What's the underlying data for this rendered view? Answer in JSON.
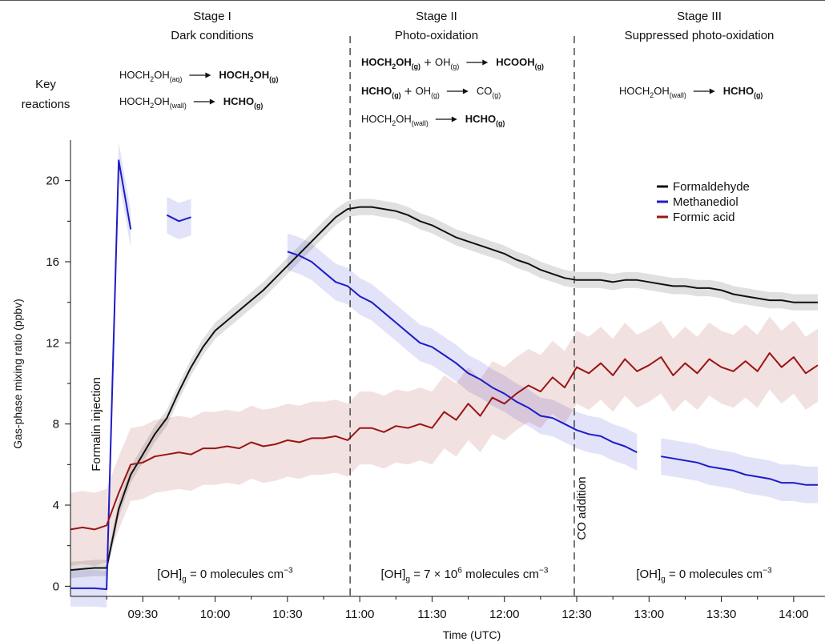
{
  "chart_data": {
    "type": "line",
    "ylabel": "Gas-phase mixing ratio (ppbv)",
    "xlabel": "Time (UTC)",
    "key_label": [
      "Key",
      "reactions"
    ],
    "xlim": [
      "09:00",
      "14:13"
    ],
    "xticks": [
      "09:30",
      "10:00",
      "10:30",
      "11:00",
      "11:30",
      "12:00",
      "12:30",
      "13:00",
      "13:30",
      "14:00"
    ],
    "xticks_minor": [
      "09:15",
      "09:45",
      "10:15",
      "10:45",
      "11:15",
      "11:45",
      "12:15",
      "12:45",
      "13:15",
      "13:45"
    ],
    "ylim": [
      -0.5,
      22
    ],
    "yticks": [
      0,
      4,
      8,
      12,
      16,
      20
    ],
    "yticks_minor": [
      2,
      6,
      10,
      14,
      18
    ],
    "grid": false,
    "legend": "upper right",
    "stage_boundaries": [
      "10:56",
      "12:29"
    ],
    "annotations": [
      {
        "text": "Formalin injection",
        "x": "09:13",
        "color": "#f5a040"
      },
      {
        "text": "CO addition",
        "x": "12:33",
        "color": "#f5a040"
      }
    ],
    "stages": [
      {
        "name": "Stage I",
        "description": "Dark conditions",
        "reactions": [
          {
            "reactants": [
              {
                "parts": [
                  "HOCH",
                  {
                    "text": "2",
                    "pos": "sub"
                  },
                  "OH",
                  {
                    "text": "(aq)",
                    "pos": "sub"
                  }
                ],
                "bold": false,
                "color": "#111111"
              }
            ],
            "products": [
              {
                "parts": [
                  "HOCH",
                  {
                    "text": "2",
                    "pos": "sub"
                  },
                  "OH",
                  {
                    "text": "(g)",
                    "pos": "sub"
                  }
                ],
                "bold": true,
                "color": "#1c1cc8"
              }
            ]
          },
          {
            "reactants": [
              {
                "parts": [
                  "HOCH",
                  {
                    "text": "2",
                    "pos": "sub"
                  },
                  "OH",
                  {
                    "text": "(wall)",
                    "pos": "sub"
                  }
                ],
                "bold": false,
                "color": "#111111"
              }
            ],
            "products": [
              {
                "parts": [
                  "HCHO",
                  {
                    "text": "(g)",
                    "pos": "sub"
                  }
                ],
                "bold": true,
                "color": "#111111"
              }
            ]
          }
        ],
        "oh": [
          "[OH]",
          {
            "text": "g",
            "pos": "sub"
          },
          " = 0 molecules cm",
          {
            "text": "−3",
            "pos": "sup"
          }
        ]
      },
      {
        "name": "Stage II",
        "description": "Photo-oxidation",
        "reactions": [
          {
            "reactants": [
              {
                "parts": [
                  "HOCH",
                  {
                    "text": "2",
                    "pos": "sub"
                  },
                  "OH",
                  {
                    "text": "(g)",
                    "pos": "sub"
                  }
                ],
                "bold": true,
                "color": "#1c1cc8"
              },
              {
                "parts": [
                  "OH",
                  {
                    "text": "(g)",
                    "pos": "sub"
                  }
                ],
                "bold": false,
                "color": "#111111"
              }
            ],
            "products": [
              {
                "parts": [
                  "HCOOH",
                  {
                    "text": "(g)",
                    "pos": "sub"
                  }
                ],
                "bold": true,
                "color": "#9b1414"
              }
            ]
          },
          {
            "reactants": [
              {
                "parts": [
                  "HCHO",
                  {
                    "text": "(g)",
                    "pos": "sub"
                  }
                ],
                "bold": true,
                "color": "#111111"
              },
              {
                "parts": [
                  "OH",
                  {
                    "text": "(g)",
                    "pos": "sub"
                  }
                ],
                "bold": false,
                "color": "#111111"
              }
            ],
            "products": [
              {
                "parts": [
                  "CO",
                  {
                    "text": "(g)",
                    "pos": "sub"
                  }
                ],
                "bold": false,
                "color": "#111111"
              }
            ]
          },
          {
            "reactants": [
              {
                "parts": [
                  "HOCH",
                  {
                    "text": "2",
                    "pos": "sub"
                  },
                  "OH",
                  {
                    "text": "(wall)",
                    "pos": "sub"
                  }
                ],
                "bold": false,
                "color": "#111111"
              }
            ],
            "products": [
              {
                "parts": [
                  "HCHO",
                  {
                    "text": "(g)",
                    "pos": "sub"
                  }
                ],
                "bold": true,
                "color": "#111111"
              }
            ]
          }
        ],
        "oh": [
          "[OH]",
          {
            "text": "g",
            "pos": "sub"
          },
          " = 7 × 10",
          {
            "text": "6",
            "pos": "sup"
          },
          " molecules cm",
          {
            "text": "−3",
            "pos": "sup"
          }
        ]
      },
      {
        "name": "Stage III",
        "description": "Suppressed photo-oxidation",
        "reactions": [
          {
            "reactants": [
              {
                "parts": [
                  "HOCH",
                  {
                    "text": "2",
                    "pos": "sub"
                  },
                  "OH",
                  {
                    "text": "(wall)",
                    "pos": "sub"
                  }
                ],
                "bold": false,
                "color": "#111111"
              }
            ],
            "products": [
              {
                "parts": [
                  "HCHO",
                  {
                    "text": "(g)",
                    "pos": "sub"
                  }
                ],
                "bold": true,
                "color": "#111111"
              }
            ]
          }
        ],
        "oh": [
          "[OH]",
          {
            "text": "g",
            "pos": "sub"
          },
          " = 0 molecules cm",
          {
            "text": "−3",
            "pos": "sup"
          }
        ]
      }
    ],
    "x": [
      "09:00",
      "09:05",
      "09:10",
      "09:15",
      "09:20",
      "09:25",
      "09:30",
      "09:35",
      "09:40",
      "09:45",
      "09:50",
      "09:55",
      "10:00",
      "10:05",
      "10:10",
      "10:15",
      "10:20",
      "10:25",
      "10:30",
      "10:35",
      "10:40",
      "10:45",
      "10:50",
      "10:55",
      "11:00",
      "11:05",
      "11:10",
      "11:15",
      "11:20",
      "11:25",
      "11:30",
      "11:35",
      "11:40",
      "11:45",
      "11:50",
      "11:55",
      "12:00",
      "12:05",
      "12:10",
      "12:15",
      "12:20",
      "12:25",
      "12:30",
      "12:35",
      "12:40",
      "12:45",
      "12:50",
      "12:55",
      "13:00",
      "13:05",
      "13:10",
      "13:15",
      "13:20",
      "13:25",
      "13:30",
      "13:35",
      "13:40",
      "13:45",
      "13:50",
      "13:55",
      "14:00",
      "14:05",
      "14:10"
    ],
    "series": [
      {
        "name": "Formaldehyde",
        "color": "#111111",
        "error": 0.4,
        "values": [
          0.8,
          0.85,
          0.9,
          0.9,
          3.8,
          5.5,
          6.5,
          7.5,
          8.3,
          9.6,
          10.8,
          11.8,
          12.6,
          13.1,
          13.6,
          14.1,
          14.6,
          15.2,
          15.8,
          16.4,
          17.0,
          17.6,
          18.2,
          18.6,
          18.7,
          18.7,
          18.6,
          18.5,
          18.3,
          18.0,
          17.8,
          17.5,
          17.2,
          17.0,
          16.8,
          16.6,
          16.4,
          16.1,
          15.9,
          15.6,
          15.4,
          15.2,
          15.1,
          15.1,
          15.1,
          15.0,
          15.1,
          15.1,
          15.0,
          14.9,
          14.8,
          14.8,
          14.7,
          14.7,
          14.6,
          14.4,
          14.3,
          14.2,
          14.1,
          14.1,
          14.0,
          14.0,
          14.0
        ]
      },
      {
        "name": "Methanediol",
        "color": "#1c1cc8",
        "error": 0.9,
        "values": [
          -0.1,
          -0.1,
          -0.1,
          -0.15,
          21,
          17.6,
          null,
          null,
          18.3,
          18.0,
          18.2,
          null,
          null,
          null,
          null,
          null,
          null,
          null,
          16.5,
          16.3,
          16.0,
          15.5,
          15.0,
          14.8,
          14.3,
          14.0,
          13.5,
          13.0,
          12.5,
          12.0,
          11.8,
          11.4,
          11.0,
          10.5,
          10.2,
          9.8,
          9.5,
          9.1,
          8.8,
          8.4,
          8.3,
          8.0,
          7.7,
          7.5,
          7.4,
          7.1,
          6.9,
          6.6,
          null,
          6.4,
          6.3,
          6.2,
          6.1,
          5.9,
          5.8,
          5.7,
          5.5,
          5.4,
          5.3,
          5.1,
          5.1,
          5.0,
          5.0
        ]
      },
      {
        "name": "Formic acid",
        "color": "#9b1414",
        "error": 1.8,
        "values": [
          2.8,
          2.9,
          2.8,
          3.0,
          4.6,
          6.0,
          6.1,
          6.4,
          6.5,
          6.6,
          6.5,
          6.8,
          6.8,
          6.9,
          6.8,
          7.1,
          6.9,
          7.0,
          7.2,
          7.1,
          7.3,
          7.3,
          7.4,
          7.2,
          7.8,
          7.8,
          7.6,
          7.9,
          7.8,
          8.0,
          7.8,
          8.6,
          8.2,
          9.0,
          8.4,
          9.3,
          9.0,
          9.5,
          9.9,
          9.6,
          10.3,
          9.8,
          10.8,
          10.5,
          11.0,
          10.4,
          11.2,
          10.6,
          10.9,
          11.3,
          10.4,
          11.0,
          10.5,
          11.2,
          10.8,
          10.6,
          11.1,
          10.6,
          11.5,
          10.8,
          11.3,
          10.5,
          10.9
        ]
      }
    ]
  }
}
